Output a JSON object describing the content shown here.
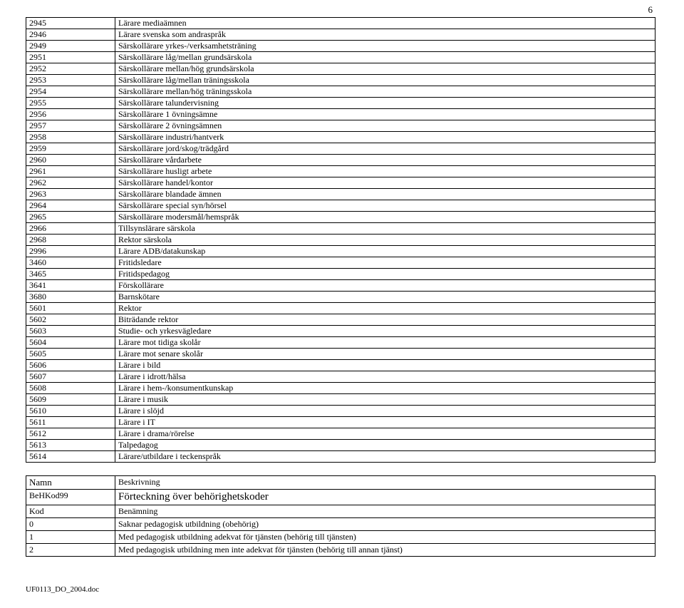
{
  "page_number": "6",
  "main": {
    "rows": [
      {
        "code": "2945",
        "label": "Lärare mediaämnen"
      },
      {
        "code": "2946",
        "label": "Lärare svenska som andraspråk"
      },
      {
        "code": "2949",
        "label": "Särskollärare yrkes-/verksamhetsträning"
      },
      {
        "code": "2951",
        "label": "Särskollärare låg/mellan grundsärskola"
      },
      {
        "code": "2952",
        "label": "Särskollärare mellan/hög grundsärskola"
      },
      {
        "code": "2953",
        "label": "Särskollärare låg/mellan träningsskola"
      },
      {
        "code": "2954",
        "label": "Särskollärare mellan/hög träningsskola"
      },
      {
        "code": "2955",
        "label": "Särskollärare talundervisning"
      },
      {
        "code": "2956",
        "label": "Särskollärare 1 övningsämne"
      },
      {
        "code": "2957",
        "label": "Särskollärare 2 övningsämnen"
      },
      {
        "code": "2958",
        "label": "Särskollärare industri/hantverk"
      },
      {
        "code": "2959",
        "label": "Särskollärare jord/skog/trädgård"
      },
      {
        "code": "2960",
        "label": "Särskollärare vårdarbete"
      },
      {
        "code": "2961",
        "label": "Särskollärare husligt arbete"
      },
      {
        "code": "2962",
        "label": "Särskollärare handel/kontor"
      },
      {
        "code": "2963",
        "label": "Särskollärare blandade ämnen"
      },
      {
        "code": "2964",
        "label": "Särskollärare special syn/hörsel"
      },
      {
        "code": "2965",
        "label": "Särskollärare modersmål/hemspråk"
      },
      {
        "code": "2966",
        "label": "Tillsynslärare särskola"
      },
      {
        "code": "2968",
        "label": "Rektor särskola"
      },
      {
        "code": "2996",
        "label": "Lärare ADB/datakunskap"
      },
      {
        "code": "3460",
        "label": "Fritidsledare"
      },
      {
        "code": "3465",
        "label": "Fritidspedagog"
      },
      {
        "code": "3641",
        "label": "Förskollärare"
      },
      {
        "code": "3680",
        "label": "Barnskötare"
      },
      {
        "code": "5601",
        "label": "Rektor"
      },
      {
        "code": "5602",
        "label": "Biträdande rektor"
      },
      {
        "code": "5603",
        "label": "Studie- och yrkesvägledare"
      },
      {
        "code": "5604",
        "label": "Lärare mot tidiga skolår"
      },
      {
        "code": "5605",
        "label": "Lärare mot senare skolår"
      },
      {
        "code": "5606",
        "label": "Lärare i bild"
      },
      {
        "code": "5607",
        "label": "Lärare i idrott/hälsa"
      },
      {
        "code": "5608",
        "label": "Lärare i hem-/konsumentkunskap"
      },
      {
        "code": "5609",
        "label": "Lärare i musik"
      },
      {
        "code": "5610",
        "label": "Lärare i slöjd"
      },
      {
        "code": "5611",
        "label": "Lärare i IT"
      },
      {
        "code": "5612",
        "label": "Lärare i drama/rörelse"
      },
      {
        "code": "5613",
        "label": "Talpedagog"
      },
      {
        "code": "5614",
        "label": "Lärare/utbildare i teckenspråk"
      }
    ]
  },
  "section": {
    "namn_label": "Namn",
    "beskrivning_label": "Beskrivning",
    "name_value": "BeHKod99",
    "desc_value": "Förteckning över behörighetskoder",
    "kod_label": "Kod",
    "benamning_label": "Benämning",
    "rows": [
      {
        "code": "0",
        "label": "Saknar pedagogisk utbildning (obehörig)"
      },
      {
        "code": "1",
        "label": "Med pedagogisk utbildning adekvat för tjänsten (behörig till tjänsten)"
      },
      {
        "code": "2",
        "label": "Med pedagogisk utbildning men inte adekvat för tjänsten (behörig till annan tjänst)"
      }
    ]
  },
  "footer": "UF0113_DO_2004.doc"
}
